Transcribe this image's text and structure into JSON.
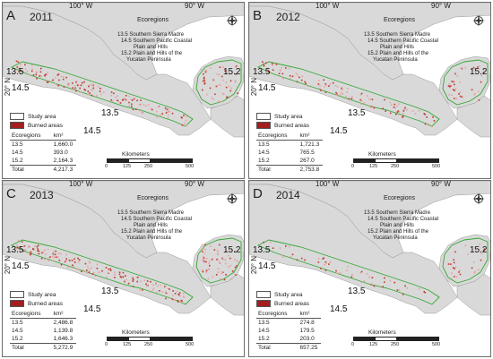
{
  "figure": {
    "lon_labels": [
      "100° W",
      "90° W"
    ],
    "lat_label": "20° N",
    "ecoregions_title": "Ecoregions",
    "ecoregions": [
      "13.5 Southern Sierra Madre",
      "14.5 Southern Pacific Coastal",
      "Plain and Hills",
      "15.2 Plain and Hills of the",
      "Yucatan Peninsula"
    ],
    "legend_study": "Study area",
    "legend_burned": "Burned areas",
    "table_header": [
      "Ecoregions",
      "km²"
    ],
    "scale_title": "Kilometers",
    "scale_ticks": [
      "0",
      "125",
      "250",
      "500"
    ],
    "colors": {
      "land": "#d9d9d9",
      "sea": "#ffffff",
      "boundary": "#36a836",
      "burned": "#c0392b",
      "study": "#ffffff"
    },
    "north_arrow_icon": "compass-rose-icon"
  },
  "panels": [
    {
      "letter": "A",
      "year": "2011",
      "labels": [
        "13.5",
        "14.5",
        "13.5",
        "14.5",
        "15.2"
      ],
      "rows": [
        [
          "13.5",
          "1,660.0"
        ],
        [
          "14.5",
          "393.0"
        ],
        [
          "15.2",
          "2,164.3"
        ]
      ],
      "total": [
        "Total",
        "4,217.3"
      ]
    },
    {
      "letter": "B",
      "year": "2012",
      "labels": [
        "13.5",
        "14.5",
        "13.5",
        "14.5",
        "15.2"
      ],
      "rows": [
        [
          "13.5",
          "1,721.3"
        ],
        [
          "14.5",
          "765.5"
        ],
        [
          "15.2",
          "267.0"
        ]
      ],
      "total": [
        "Total",
        "2,753.8"
      ]
    },
    {
      "letter": "C",
      "year": "2013",
      "labels": [
        "13.5",
        "14.5",
        "13.5",
        "14.5",
        "15.2"
      ],
      "rows": [
        [
          "13.5",
          "2,486.8"
        ],
        [
          "14.5",
          "1,139.8"
        ],
        [
          "15.2",
          "1,646.3"
        ]
      ],
      "total": [
        "Total",
        "5,272.9"
      ]
    },
    {
      "letter": "D",
      "year": "2014",
      "labels": [
        "13.5",
        "14.5",
        "13.5",
        "14.5",
        "15.2"
      ],
      "rows": [
        [
          "13.5",
          "274.8"
        ],
        [
          "14.5",
          "179.5"
        ],
        [
          "15.2",
          "203.0"
        ]
      ],
      "total": [
        "Total",
        "657.25"
      ]
    }
  ]
}
